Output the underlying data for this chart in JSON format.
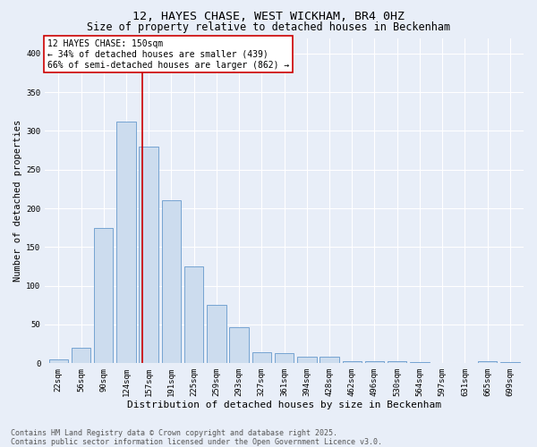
{
  "title": "12, HAYES CHASE, WEST WICKHAM, BR4 0HZ",
  "subtitle": "Size of property relative to detached houses in Beckenham",
  "xlabel": "Distribution of detached houses by size in Beckenham",
  "ylabel": "Number of detached properties",
  "bin_labels": [
    "22sqm",
    "56sqm",
    "90sqm",
    "124sqm",
    "157sqm",
    "191sqm",
    "225sqm",
    "259sqm",
    "293sqm",
    "327sqm",
    "361sqm",
    "394sqm",
    "428sqm",
    "462sqm",
    "496sqm",
    "530sqm",
    "564sqm",
    "597sqm",
    "631sqm",
    "665sqm",
    "699sqm"
  ],
  "bar_values": [
    5,
    20,
    175,
    312,
    280,
    210,
    125,
    75,
    47,
    14,
    13,
    8,
    8,
    3,
    3,
    3,
    1,
    0,
    0,
    2,
    1
  ],
  "bar_color": "#ccdcee",
  "bar_edgecolor": "#6699cc",
  "vline_pos": 3.72,
  "vline_color": "#cc0000",
  "annotation_text": "12 HAYES CHASE: 150sqm\n← 34% of detached houses are smaller (439)\n66% of semi-detached houses are larger (862) →",
  "annotation_box_edgecolor": "#cc0000",
  "footer_text": "Contains HM Land Registry data © Crown copyright and database right 2025.\nContains public sector information licensed under the Open Government Licence v3.0.",
  "bg_color": "#e8eef8",
  "ylim": [
    0,
    420
  ],
  "yticks": [
    0,
    50,
    100,
    150,
    200,
    250,
    300,
    350,
    400
  ],
  "title_fontsize": 9.5,
  "subtitle_fontsize": 8.5,
  "xlabel_fontsize": 8,
  "ylabel_fontsize": 7.5,
  "tick_fontsize": 6.5,
  "annotation_fontsize": 7,
  "footer_fontsize": 6
}
